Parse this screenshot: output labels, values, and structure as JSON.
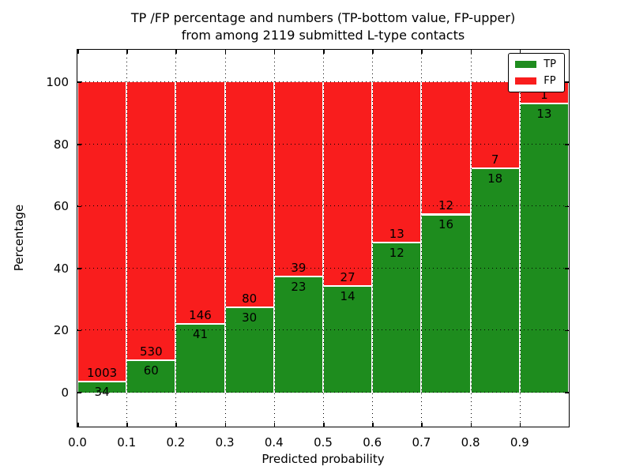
{
  "title": {
    "line1": "TP /FP percentage and numbers (TP-bottom value, FP-upper)",
    "line2": "from among 2119 submitted L-type contacts"
  },
  "colors": {
    "tp_green": "#1e8c1e",
    "fp_red": "#f91d1d",
    "bar_edge": "#ffffff",
    "grid": "#000000"
  },
  "chart_data": {
    "type": "bar",
    "stacked": true,
    "normalized": "each bin scaled to 100%",
    "title": "TP /FP percentage and numbers (TP-bottom value, FP-upper) from among 2119 submitted L-type contacts",
    "xlabel": "Predicted probability",
    "ylabel": "Percentage",
    "x_bin_edges": [
      0.0,
      0.1,
      0.2,
      0.3,
      0.4,
      0.5,
      0.6,
      0.7,
      0.8,
      0.9,
      1.0
    ],
    "x_tick_labels": [
      "0.0",
      "0.1",
      "0.2",
      "0.3",
      "0.4",
      "0.5",
      "0.6",
      "0.7",
      "0.8",
      "0.9"
    ],
    "y_ticks": [
      0,
      20,
      40,
      60,
      80,
      100
    ],
    "xlim": [
      0,
      1
    ],
    "ylim": [
      -11,
      110.5
    ],
    "grid": true,
    "legend_position": "upper right",
    "series": [
      {
        "name": "TP",
        "color": "#1e8c1e",
        "values": [
          34,
          60,
          41,
          30,
          23,
          14,
          12,
          16,
          18,
          13
        ]
      },
      {
        "name": "FP",
        "color": "#f91d1d",
        "values": [
          1003,
          530,
          146,
          80,
          39,
          27,
          13,
          12,
          7,
          1
        ]
      }
    ],
    "tp_percent_by_bin": [
      3.3,
      10.2,
      21.9,
      27.3,
      37.1,
      34.1,
      48.0,
      57.1,
      72.0,
      92.9
    ],
    "total_contacts": 2119
  },
  "legend": {
    "entries": [
      {
        "label": "TP",
        "color": "#1e8c1e"
      },
      {
        "label": "FP",
        "color": "#f91d1d"
      }
    ]
  }
}
